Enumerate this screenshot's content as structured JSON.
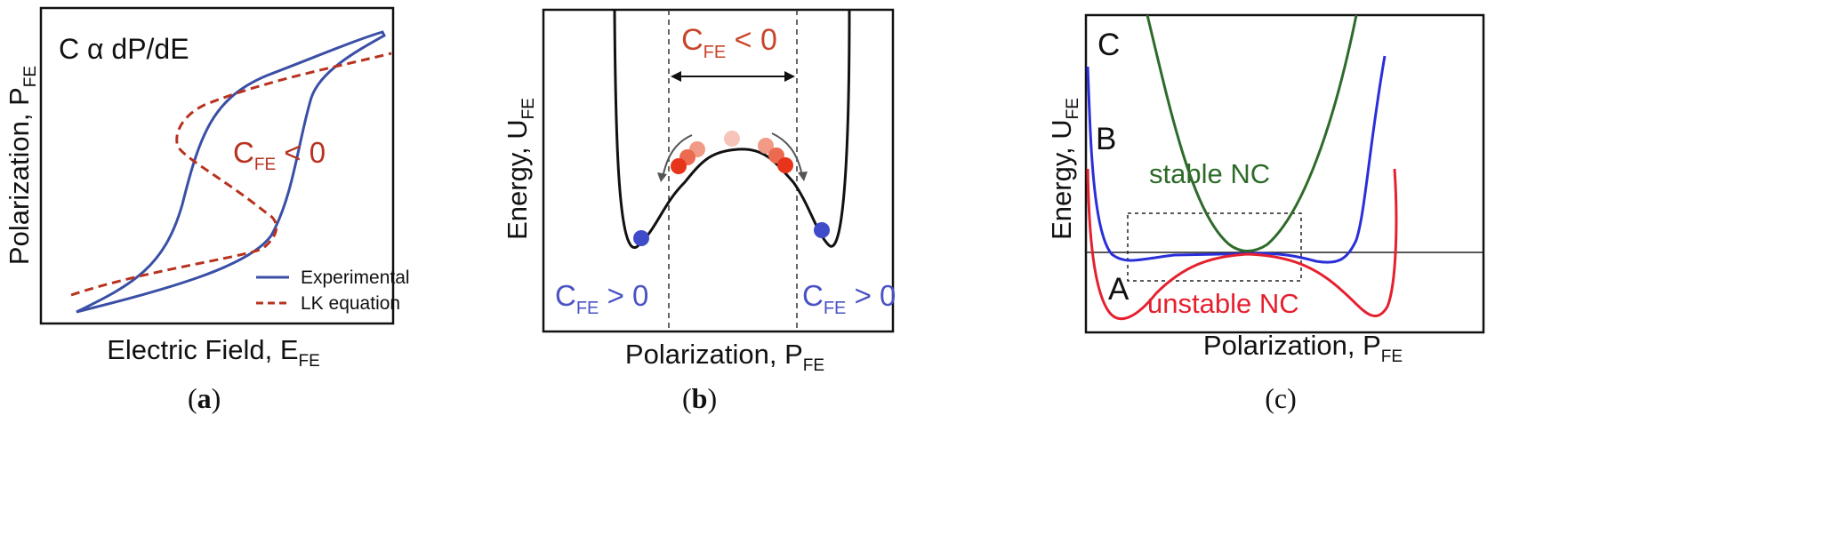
{
  "panel_a": {
    "title_text": "C α dP/dE",
    "neg_cap_base": "C",
    "neg_cap_sub": "FE",
    "neg_cap_rel": " < 0",
    "xlabel_base": "Electric Field, E",
    "xlabel_sub": "FE",
    "ylabel_base": "Polarization, P",
    "ylabel_sub": "FE",
    "caption_open": "(",
    "caption_letter": "a",
    "caption_close": ")",
    "colors": {
      "experimental": "#3a4fa6",
      "lk": "#b8321f",
      "annot": "#b8321f"
    }
  },
  "panel_b": {
    "neg_cap_base": "C",
    "neg_cap_sub": "FE",
    "neg_cap_rel": " < 0",
    "pos_left_base": "C",
    "pos_left_sub": "FE",
    "pos_left_rel": " > 0",
    "pos_right_base": "C",
    "pos_right_sub": "FE",
    "pos_right_rel": " > 0",
    "xlabel_base": "Polarization, P",
    "xlabel_sub": "FE",
    "ylabel_base": "Energy, U",
    "ylabel_sub": "FE",
    "caption_open": "(",
    "caption_letter": "b",
    "caption_close": ")",
    "colors": {
      "negative": "#c8452a",
      "positive": "#4a52c4",
      "ball_stable": "#3f4bc9"
    }
  },
  "panel_c": {
    "label_a": "A",
    "label_b": "B",
    "label_c": "C",
    "stable_label": "stable NC",
    "unstable_label": "unstable NC",
    "xlabel_base": "Polarization, P",
    "xlabel_sub": "FE",
    "ylabel_base": "Energy, U",
    "ylabel_sub": "FE",
    "caption": "(c)",
    "colors": {
      "A": "#e5202f",
      "B": "#2a2fd9",
      "C": "#2e6b2a"
    }
  },
  "chart_data": [
    {
      "type": "line",
      "title": "C α dP/dE",
      "xlabel": "Electric Field, E_FE",
      "ylabel": "Polarization, P_FE",
      "legend": {
        "position": "bottom-right",
        "entries": [
          "Experimental",
          "LK equation"
        ]
      },
      "series": [
        {
          "name": "Experimental",
          "style": "solid",
          "color": "#3a4fa6"
        },
        {
          "name": "LK equation",
          "style": "dashed",
          "color": "#b8321f"
        }
      ],
      "annotations": [
        "C_FE < 0"
      ]
    },
    {
      "type": "line",
      "xlabel": "Polarization, P_FE",
      "ylabel": "Energy, U_FE",
      "annotations": [
        "C_FE < 0",
        "C_FE > 0",
        "C_FE > 0"
      ]
    },
    {
      "type": "line",
      "xlabel": "Polarization, P_FE",
      "ylabel": "Energy, U_FE",
      "series": [
        {
          "name": "A",
          "color": "#e5202f"
        },
        {
          "name": "B",
          "color": "#2a2fd9"
        },
        {
          "name": "C",
          "color": "#2e6b2a"
        }
      ],
      "annotations": [
        "stable NC",
        "unstable NC"
      ]
    }
  ]
}
